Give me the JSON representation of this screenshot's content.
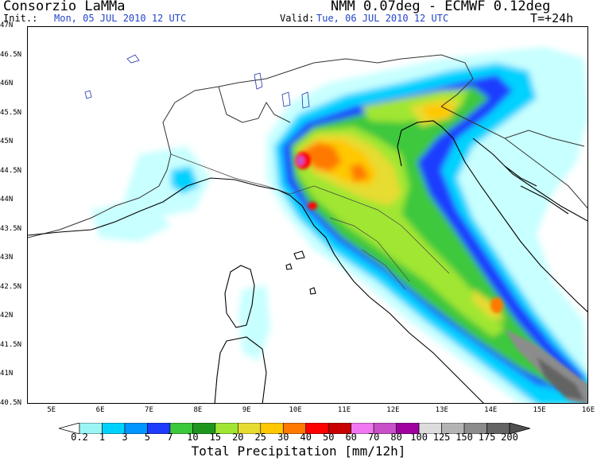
{
  "header": {
    "org": "Consorzio LaMMa",
    "model": "NMM 0.07deg - ECMWF 0.12deg",
    "init_label": "Init.:",
    "init_value": "Mon, 05 JUL 2010   12 UTC",
    "valid_label": "Valid:",
    "valid_value": "Tue, 06 JUL 2010   12 UTC",
    "lead_time": "T=+24h"
  },
  "map": {
    "lon_range": [
      4.5,
      16.0
    ],
    "lat_range": [
      40.5,
      47.0
    ],
    "lat_labels": [
      "47N",
      "46.5N",
      "46N",
      "45.5N",
      "45N",
      "44.5N",
      "44N",
      "43.5N",
      "43N",
      "42.5N",
      "42N",
      "41.5N",
      "41N",
      "40.5N"
    ],
    "lon_labels": [
      "5E",
      "6E",
      "7E",
      "8E",
      "9E",
      "10E",
      "11E",
      "12E",
      "13E",
      "14E",
      "15E",
      "16E"
    ],
    "colors": {
      "land_border": "#333333",
      "coast": "#000000",
      "map_bg": "#ffffff"
    }
  },
  "colorbar": {
    "title": "Total Precipitation [mm/12h]",
    "levels": [
      "0.2",
      "1",
      "3",
      "5",
      "7",
      "10",
      "15",
      "20",
      "25",
      "30",
      "40",
      "50",
      "60",
      "70",
      "80",
      "100",
      "125",
      "150",
      "175",
      "200"
    ],
    "colors": [
      "#c8ffff",
      "#9bf5f5",
      "#00d2ff",
      "#0096ff",
      "#1e3cff",
      "#3cc83c",
      "#1e961e",
      "#a0e632",
      "#e6dc32",
      "#ffc800",
      "#ff7800",
      "#ff0000",
      "#c80000",
      "#f078f0",
      "#c850c8",
      "#a000a0",
      "#dcdcdc",
      "#b4b4b4",
      "#8c8c8c",
      "#646464",
      "#505050"
    ]
  }
}
